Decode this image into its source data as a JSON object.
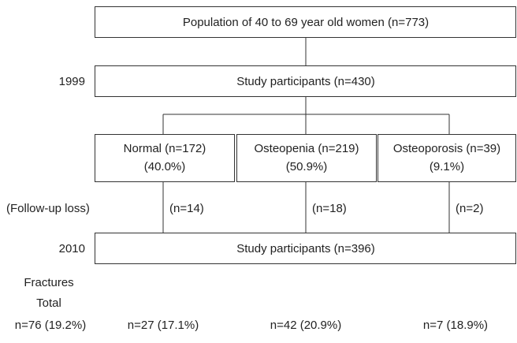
{
  "nodes": [
    {
      "label": "Population of 40 to 69 year old women (n=773)"
    },
    {
      "label": "Study participants (n=430)"
    },
    {
      "label": "Normal (n=172)",
      "percent": "(40.0%)"
    },
    {
      "label": "Osteopenia (n=219)",
      "percent": "(50.9%)"
    },
    {
      "label": "Osteoporosis (n=39)",
      "percent": "(9.1%)"
    },
    {
      "label": "Study participants (n=396)"
    }
  ],
  "years": [
    "1999",
    "2010"
  ],
  "follow_up": {
    "label": "(Follow-up loss)",
    "counts": [
      "(n=14)",
      "(n=18)",
      "(n=2)"
    ]
  },
  "fractures": {
    "title": "Fractures",
    "total_label": "Total",
    "values": [
      "n=76 (19.2%)",
      "n=27 (17.1%)",
      "n=42 (20.9%)",
      "n=7 (18.9%)"
    ]
  }
}
